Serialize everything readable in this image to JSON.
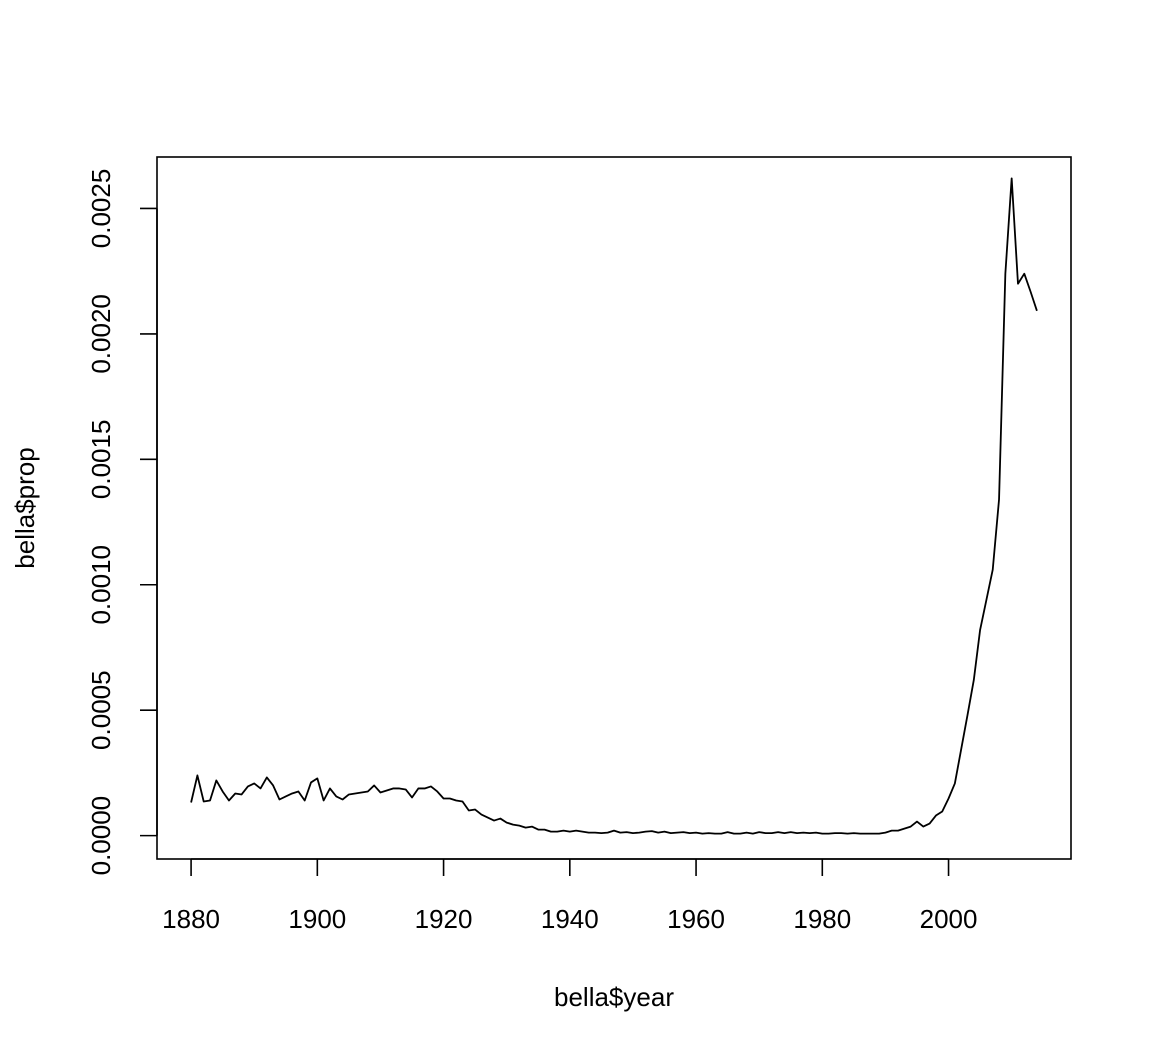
{
  "chart_data": {
    "type": "line",
    "title": "",
    "xlabel": "bella$year",
    "ylabel": "bella$prop",
    "xlim": [
      1874.6,
      2019.4
    ],
    "ylim": [
      -9.32e-05,
      0.0027052
    ],
    "grid": false,
    "legend": "none",
    "x_ticks": [
      1880,
      1900,
      1920,
      1940,
      1960,
      1980,
      2000
    ],
    "x_tick_labels": [
      "1880",
      "1900",
      "1920",
      "1940",
      "1960",
      "1980",
      "2000"
    ],
    "y_ticks": [
      0,
      0.0005,
      0.001,
      0.0015,
      0.002,
      0.0025
    ],
    "y_tick_labels": [
      "0.0000",
      "0.0005",
      "0.0010",
      "0.0015",
      "0.0020",
      "0.0025"
    ],
    "line_color": "#000000",
    "series": [
      {
        "x": [
          1880,
          1881,
          1882,
          1883,
          1884,
          1885,
          1886,
          1887,
          1888,
          1889,
          1890,
          1891,
          1892,
          1893,
          1894,
          1895,
          1896,
          1897,
          1898,
          1899,
          1900,
          1901,
          1902,
          1903,
          1904,
          1905,
          1906,
          1907,
          1908,
          1909,
          1910,
          1911,
          1912,
          1913,
          1914,
          1915,
          1916,
          1917,
          1918,
          1919,
          1920,
          1921,
          1922,
          1923,
          1924,
          1925,
          1926,
          1927,
          1928,
          1929,
          1930,
          1931,
          1932,
          1933,
          1934,
          1935,
          1936,
          1937,
          1938,
          1939,
          1940,
          1941,
          1942,
          1943,
          1944,
          1945,
          1946,
          1947,
          1948,
          1949,
          1950,
          1951,
          1952,
          1953,
          1954,
          1955,
          1956,
          1957,
          1958,
          1959,
          1960,
          1961,
          1962,
          1963,
          1964,
          1965,
          1966,
          1967,
          1968,
          1969,
          1970,
          1971,
          1972,
          1973,
          1974,
          1975,
          1976,
          1977,
          1978,
          1979,
          1980,
          1981,
          1982,
          1983,
          1984,
          1985,
          1986,
          1987,
          1988,
          1989,
          1990,
          1991,
          1992,
          1993,
          1994,
          1995,
          1996,
          1997,
          1998,
          1999,
          2000,
          2001,
          2002,
          2003,
          2004,
          2005,
          2006,
          2007,
          2008,
          2009,
          2010,
          2011,
          2012,
          2013,
          2014
        ],
        "values": [
          0.000132,
          0.00024,
          0.000136,
          0.00014,
          0.00022,
          0.000176,
          0.00014,
          0.000168,
          0.000164,
          0.000196,
          0.000208,
          0.000188,
          0.000232,
          0.0002,
          0.000144,
          0.000156,
          0.000168,
          0.000176,
          0.00014,
          0.000212,
          0.000228,
          0.00014,
          0.000188,
          0.000156,
          0.000144,
          0.000164,
          0.000168,
          0.000172,
          0.000176,
          0.0002,
          0.000172,
          0.00018,
          0.000188,
          0.000188,
          0.000184,
          0.000152,
          0.000188,
          0.000188,
          0.000196,
          0.000176,
          0.000148,
          0.000148,
          0.00014,
          0.000136,
          0.0001,
          0.000104,
          8.4e-05,
          7.2e-05,
          6e-05,
          6.8e-05,
          5.2e-05,
          4.4e-05,
          4e-05,
          3.2e-05,
          3.6e-05,
          2.4e-05,
          2.4e-05,
          1.6e-05,
          1.6e-05,
          2e-05,
          1.6e-05,
          2e-05,
          1.6e-05,
          1.2e-05,
          1.2e-05,
          1e-05,
          1.2e-05,
          2e-05,
          1.2e-05,
          1.4e-05,
          1e-05,
          1.2e-05,
          1.6e-05,
          1.8e-05,
          1.2e-05,
          1.6e-05,
          1e-05,
          1.2e-05,
          1.4e-05,
          1e-05,
          1.2e-05,
          8e-06,
          1e-05,
          8e-06,
          8e-06,
          1.4e-05,
          8e-06,
          8e-06,
          1.2e-05,
          8e-06,
          1.4e-05,
          1e-05,
          1e-05,
          1.4e-05,
          1e-05,
          1.4e-05,
          1e-05,
          1.2e-05,
          1e-05,
          1.2e-05,
          8e-06,
          8e-06,
          1e-05,
          1e-05,
          8e-06,
          1e-05,
          8e-06,
          8e-06,
          8e-06,
          8e-06,
          1.2e-05,
          2e-05,
          2e-05,
          2.8e-05,
          3.6e-05,
          5.6e-05,
          3.6e-05,
          4.8e-05,
          8e-05,
          9.6e-05,
          0.000148,
          0.000208,
          0.000344,
          0.00048,
          0.00062,
          0.00082,
          0.00094,
          0.00106,
          0.00134,
          0.00224,
          0.00262,
          0.0022,
          0.00224,
          0.002168,
          0.002092
        ]
      }
    ]
  }
}
